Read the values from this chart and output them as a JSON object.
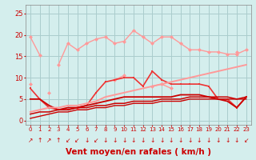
{
  "x": [
    0,
    1,
    2,
    3,
    4,
    5,
    6,
    7,
    8,
    9,
    10,
    11,
    12,
    13,
    14,
    15,
    16,
    17,
    18,
    19,
    20,
    21,
    22,
    23
  ],
  "background_color": "#d4eeed",
  "grid_color": "#aacccc",
  "xlabel": "Vent moyen/en rafales ( km/h )",
  "xlabel_color": "#cc0000",
  "xlabel_fontsize": 7.5,
  "tick_color": "#cc0000",
  "yticks": [
    0,
    5,
    10,
    15,
    20,
    25
  ],
  "ylim": [
    -1,
    27
  ],
  "xlim": [
    -0.5,
    23.5
  ],
  "lines": [
    {
      "y": [
        19.5,
        15.3,
        null,
        null,
        null,
        null,
        null,
        null,
        null,
        null,
        null,
        null,
        null,
        null,
        null,
        null,
        null,
        null,
        null,
        null,
        null,
        null,
        null,
        null
      ],
      "color": "#ff9999",
      "lw": 1.0,
      "marker": "D",
      "ms": 2.5
    },
    {
      "y": [
        null,
        null,
        null,
        13.0,
        18.0,
        16.5,
        18.0,
        19.0,
        19.5,
        18.0,
        18.5,
        21.0,
        19.5,
        18.0,
        19.5,
        19.5,
        18.0,
        16.5,
        16.5,
        16.0,
        16.0,
        15.5,
        15.5,
        16.5
      ],
      "color": "#ff9999",
      "lw": 1.0,
      "marker": "D",
      "ms": 2.5
    },
    {
      "y": [
        null,
        null,
        6.5,
        null,
        null,
        3.0,
        null,
        null,
        null,
        null,
        null,
        null,
        null,
        null,
        null,
        null,
        null,
        null,
        null,
        null,
        null,
        null,
        null,
        null
      ],
      "color": "#ff9999",
      "lw": 1.0,
      "marker": "D",
      "ms": 2.5
    },
    {
      "y": [
        8.5,
        null,
        null,
        null,
        null,
        null,
        null,
        null,
        null,
        null,
        null,
        null,
        null,
        null,
        null,
        null,
        null,
        null,
        null,
        null,
        null,
        null,
        null,
        null
      ],
      "color": "#ff9999",
      "lw": 1.0,
      "marker": "D",
      "ms": 2.5
    },
    {
      "y": [
        null,
        null,
        null,
        null,
        null,
        null,
        null,
        null,
        null,
        9.5,
        10.5,
        null,
        null,
        8.0,
        8.5,
        7.5,
        null,
        null,
        null,
        null,
        null,
        null,
        null,
        null
      ],
      "color": "#ff9999",
      "lw": 1.0,
      "marker": "D",
      "ms": 2.5
    },
    {
      "y": [
        null,
        null,
        null,
        null,
        null,
        null,
        null,
        null,
        null,
        null,
        null,
        null,
        null,
        null,
        null,
        null,
        null,
        null,
        null,
        null,
        null,
        null,
        16.0,
        null
      ],
      "color": "#ff9999",
      "lw": 1.0,
      "marker": "D",
      "ms": 2.5
    },
    {
      "y": [
        7.5,
        5.0,
        3.0,
        2.5,
        2.5,
        3.0,
        3.5,
        6.5,
        9.0,
        9.5,
        10.0,
        10.0,
        8.0,
        11.5,
        9.5,
        8.5,
        8.5,
        8.5,
        8.5,
        8.0,
        5.0,
        5.0,
        3.0,
        5.5
      ],
      "color": "#ee3333",
      "lw": 1.2,
      "marker": "s",
      "ms": 2.0
    },
    {
      "y": [
        5.0,
        5.0,
        3.5,
        2.5,
        3.0,
        3.0,
        3.5,
        4.0,
        4.5,
        5.0,
        5.5,
        5.5,
        5.5,
        5.5,
        5.5,
        5.5,
        6.0,
        6.0,
        6.0,
        5.5,
        5.0,
        4.5,
        3.0,
        5.5
      ],
      "color": "#cc0000",
      "lw": 1.3,
      "marker": null,
      "ms": 0
    },
    {
      "y": [
        2.0,
        2.5,
        3.0,
        3.0,
        3.5,
        3.5,
        4.0,
        4.5,
        5.5,
        6.0,
        6.5,
        7.0,
        7.5,
        8.0,
        8.5,
        9.0,
        9.5,
        10.0,
        10.5,
        11.0,
        11.5,
        12.0,
        12.5,
        13.0
      ],
      "color": "#ff9999",
      "lw": 1.4,
      "marker": null,
      "ms": 0
    },
    {
      "y": [
        1.5,
        2.0,
        2.0,
        2.5,
        2.5,
        3.0,
        3.0,
        3.5,
        3.5,
        4.0,
        4.0,
        4.5,
        4.5,
        4.5,
        5.0,
        5.0,
        5.0,
        5.5,
        5.5,
        5.5,
        5.5,
        5.5,
        5.0,
        5.5
      ],
      "color": "#cc0000",
      "lw": 1.1,
      "marker": null,
      "ms": 0
    },
    {
      "y": [
        0.5,
        1.0,
        1.5,
        2.0,
        2.0,
        2.5,
        2.5,
        3.0,
        3.0,
        3.5,
        3.5,
        4.0,
        4.0,
        4.0,
        4.5,
        4.5,
        4.5,
        5.0,
        5.0,
        5.0,
        5.0,
        5.0,
        5.0,
        5.0
      ],
      "color": "#cc0000",
      "lw": 1.0,
      "marker": null,
      "ms": 0
    }
  ],
  "arrow_symbols": [
    "↗",
    "↑",
    "↗",
    "↑",
    "↙",
    "↙",
    "↓",
    "↙",
    "↓",
    "↓",
    "↓",
    "↓",
    "↓",
    "↓",
    "↓",
    "↓",
    "↓",
    "↓",
    "↓",
    "↓",
    "↓",
    "↓",
    "↓",
    "↙"
  ],
  "arrow_color": "#cc0000",
  "arrow_fontsize": 5.5
}
